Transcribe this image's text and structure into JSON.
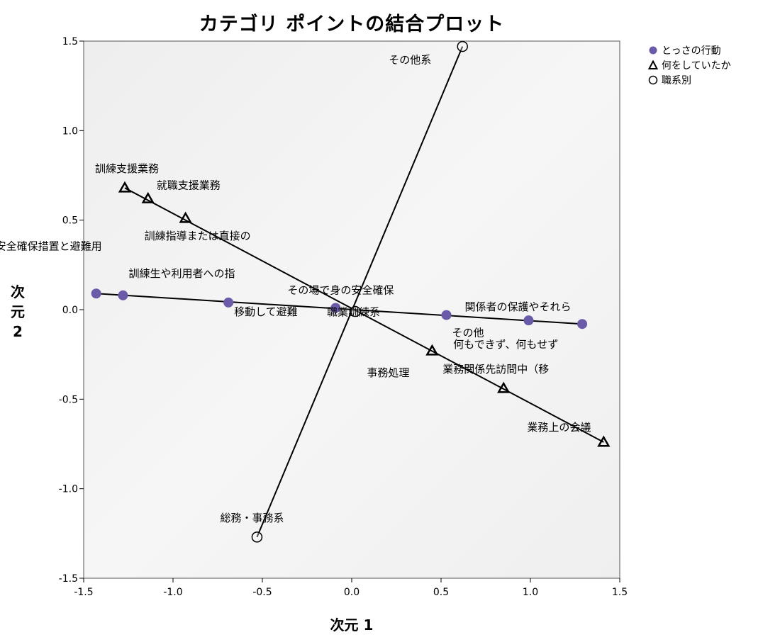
{
  "chart_data": {
    "type": "scatter",
    "title": "カテゴリ ポイントの結合プロット",
    "xlabel": "次元 1",
    "ylabel": "次元 2",
    "xlim": [
      -1.5,
      1.5
    ],
    "ylim": [
      -1.5,
      1.5
    ],
    "xticks": [
      "-1.5",
      "-1.0",
      "-0.5",
      "0.0",
      "0.5",
      "1.0",
      "1.5"
    ],
    "yticks": [
      "1.5",
      "1.0",
      "0.5",
      "0.0",
      "-0.5",
      "-1.0",
      "-1.5"
    ],
    "grid": false,
    "legend_position": "top-right",
    "series": [
      {
        "name": "とっさの行動",
        "marker": "filled-circle",
        "color": "#6a5aa8",
        "points": [
          {
            "x": -1.43,
            "y": 0.09,
            "label": "安全確保措置と避難用"
          },
          {
            "x": -1.28,
            "y": 0.08,
            "label": "訓練生や利用者への指"
          },
          {
            "x": -0.69,
            "y": 0.04,
            "label": "移動して避難"
          },
          {
            "x": -0.09,
            "y": 0.01,
            "label": "その場で身の安全確保"
          },
          {
            "x": 0.53,
            "y": -0.03,
            "label": "その他"
          },
          {
            "x": 0.99,
            "y": -0.06,
            "label": "関係者の保護やそれら"
          },
          {
            "x": 1.29,
            "y": -0.08,
            "label": "何もできず、何もせず"
          }
        ]
      },
      {
        "name": "何をしていたか",
        "marker": "triangle",
        "color": "#000000",
        "points": [
          {
            "x": -1.27,
            "y": 0.68,
            "label": "訓練支援業務"
          },
          {
            "x": -1.14,
            "y": 0.62,
            "label": "就職支援業務"
          },
          {
            "x": -0.93,
            "y": 0.51,
            "label": "訓練指導または直接の"
          },
          {
            "x": 0.45,
            "y": -0.23,
            "label": "事務処理"
          },
          {
            "x": 0.85,
            "y": -0.44,
            "label": "業務関係先訪問中（移"
          },
          {
            "x": 1.41,
            "y": -0.74,
            "label": "業務上の会議"
          }
        ]
      },
      {
        "name": "職系別",
        "marker": "open-circle",
        "color": "#000000",
        "points": [
          {
            "x": 0.62,
            "y": 1.47,
            "label": "その他系"
          },
          {
            "x": -0.53,
            "y": -1.27,
            "label": "総務・事務系"
          },
          {
            "x": 0.02,
            "y": -0.01,
            "label": "職業訓練系"
          }
        ]
      }
    ]
  }
}
